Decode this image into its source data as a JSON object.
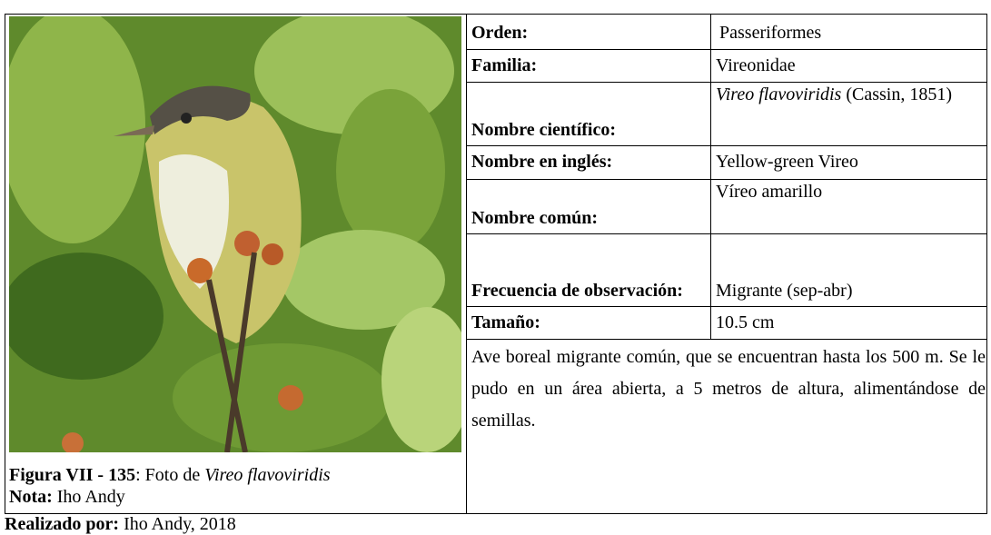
{
  "table": {
    "rows": [
      {
        "label": "Orden:",
        "value": "Passeriformes"
      },
      {
        "label": "Familia:",
        "value": "Vireonidae"
      },
      {
        "label": "Nombre científico:",
        "value_italic": "Vireo flavoviridis",
        "value": " (Cassin, 1851)"
      },
      {
        "label": "Nombre en inglés:",
        "value": "Yellow-green Vireo"
      },
      {
        "label": "Nombre común:",
        "value": "Víreo amarillo"
      },
      {
        "label": "Frecuencia de observación:",
        "value": "Migrante (sep-abr)"
      },
      {
        "label": "Tamaño:",
        "value": "10.5 cm"
      }
    ]
  },
  "description": "Ave boreal migrante común, que se encuentran hasta los 500 m. Se le pudo en un área abierta, a 5 metros de altura, alimentándose de semillas.",
  "caption": {
    "figure": "Figura VII - 135",
    "text": ": Foto de ",
    "species": "Vireo flavoviridis"
  },
  "note": {
    "label": "Nota:",
    "text": " Iho Andy"
  },
  "footer": {
    "label": "Realizado por:",
    "text": " Iho Andy, 2018"
  }
}
